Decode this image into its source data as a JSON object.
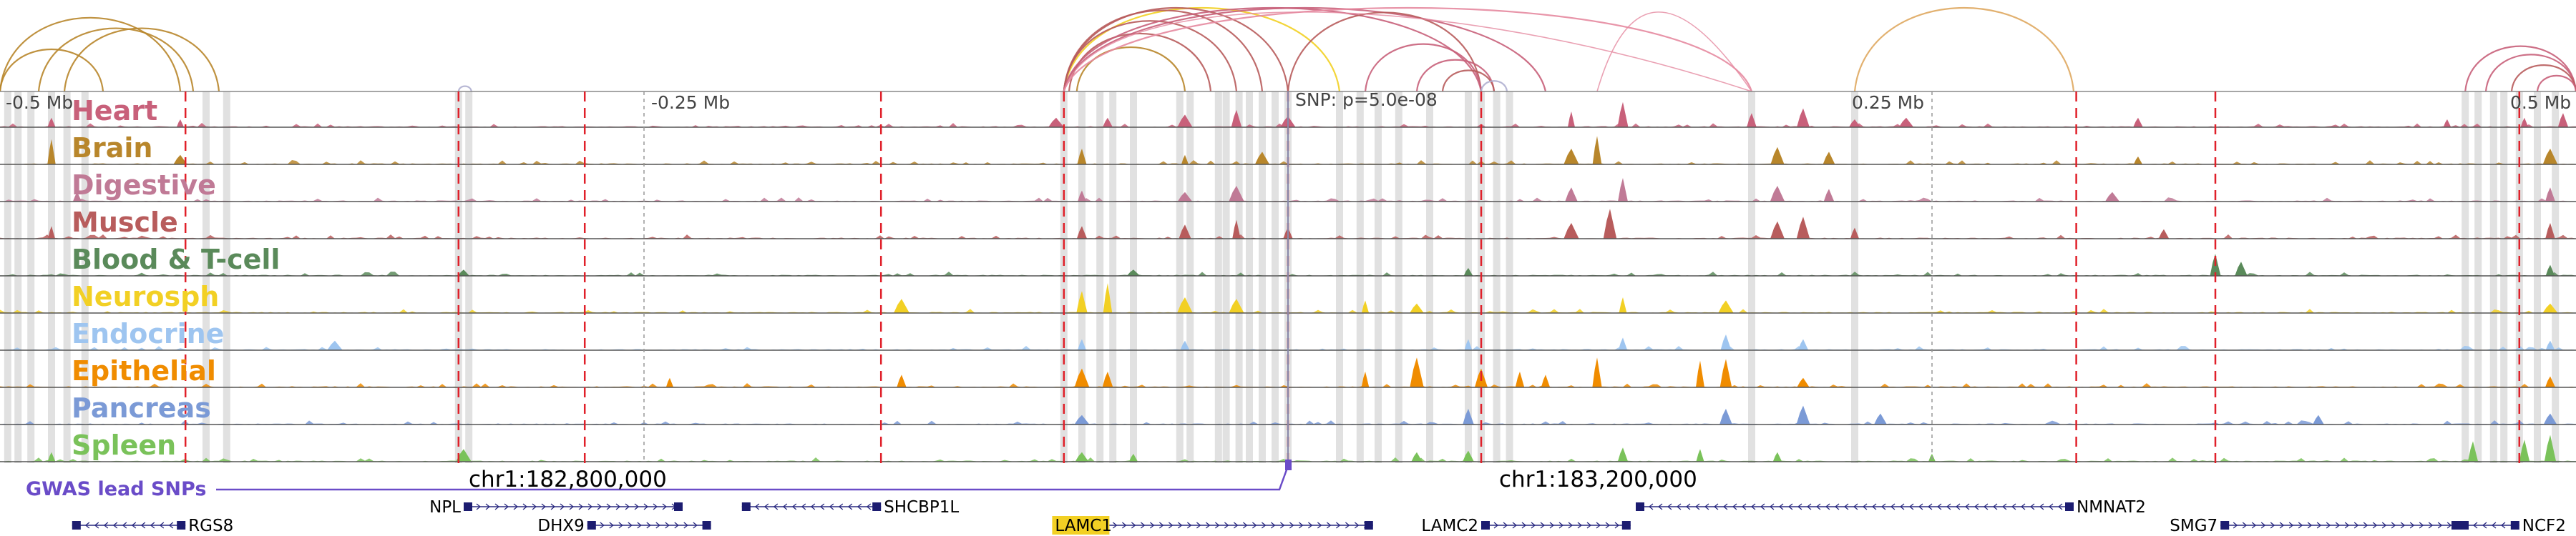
{
  "tracks": [
    {
      "label": "Heart",
      "color": "#c8607a",
      "peaks": [
        [
          0.02,
          0.3
        ],
        [
          0.07,
          0.25
        ],
        [
          0.41,
          0.3
        ],
        [
          0.43,
          0.3
        ],
        [
          0.46,
          0.4
        ],
        [
          0.48,
          0.55
        ],
        [
          0.5,
          0.35
        ],
        [
          0.61,
          0.5
        ],
        [
          0.63,
          0.8
        ],
        [
          0.68,
          0.45
        ],
        [
          0.7,
          0.6
        ],
        [
          0.72,
          0.25
        ],
        [
          0.74,
          0.3
        ],
        [
          0.83,
          0.3
        ],
        [
          0.95,
          0.25
        ],
        [
          0.98,
          0.3
        ],
        [
          0.995,
          0.45
        ]
      ]
    },
    {
      "label": "Brain",
      "color": "#b8862b",
      "peaks": [
        [
          0.02,
          0.8
        ],
        [
          0.07,
          0.3
        ],
        [
          0.42,
          0.5
        ],
        [
          0.46,
          0.3
        ],
        [
          0.49,
          0.4
        ],
        [
          0.61,
          0.5
        ],
        [
          0.62,
          0.9
        ],
        [
          0.69,
          0.55
        ],
        [
          0.71,
          0.4
        ],
        [
          0.83,
          0.25
        ],
        [
          0.99,
          0.5
        ]
      ]
    },
    {
      "label": "Digestive",
      "color": "#c07a96",
      "peaks": [
        [
          0.03,
          0.3
        ],
        [
          0.42,
          0.35
        ],
        [
          0.46,
          0.3
        ],
        [
          0.48,
          0.5
        ],
        [
          0.61,
          0.45
        ],
        [
          0.63,
          0.75
        ],
        [
          0.69,
          0.5
        ],
        [
          0.71,
          0.4
        ],
        [
          0.82,
          0.3
        ],
        [
          0.99,
          0.45
        ]
      ]
    },
    {
      "label": "Muscle",
      "color": "#b85c5c",
      "peaks": [
        [
          0.02,
          0.4
        ],
        [
          0.42,
          0.4
        ],
        [
          0.46,
          0.45
        ],
        [
          0.48,
          0.6
        ],
        [
          0.5,
          0.35
        ],
        [
          0.61,
          0.5
        ],
        [
          0.625,
          0.95
        ],
        [
          0.69,
          0.55
        ],
        [
          0.7,
          0.7
        ],
        [
          0.72,
          0.35
        ],
        [
          0.84,
          0.3
        ],
        [
          0.99,
          0.5
        ]
      ]
    },
    {
      "label": "Blood & T-cell",
      "color": "#5a8a5a",
      "peaks": [
        [
          0.18,
          0.2
        ],
        [
          0.44,
          0.2
        ],
        [
          0.57,
          0.25
        ],
        [
          0.86,
          0.7
        ],
        [
          0.87,
          0.45
        ],
        [
          0.99,
          0.35
        ]
      ]
    },
    {
      "label": "Neurosph",
      "color": "#f2d024",
      "peaks": [
        [
          0.35,
          0.45
        ],
        [
          0.42,
          0.7
        ],
        [
          0.43,
          0.95
        ],
        [
          0.46,
          0.5
        ],
        [
          0.48,
          0.45
        ],
        [
          0.53,
          0.4
        ],
        [
          0.55,
          0.3
        ],
        [
          0.63,
          0.5
        ],
        [
          0.67,
          0.4
        ],
        [
          0.99,
          0.3
        ]
      ]
    },
    {
      "label": "Endocrine",
      "color": "#9ec5f0",
      "peaks": [
        [
          0.13,
          0.3
        ],
        [
          0.42,
          0.35
        ],
        [
          0.46,
          0.3
        ],
        [
          0.57,
          0.35
        ],
        [
          0.63,
          0.4
        ],
        [
          0.67,
          0.5
        ],
        [
          0.7,
          0.35
        ],
        [
          0.99,
          0.3
        ]
      ]
    },
    {
      "label": "Epithelial",
      "color": "#f08c00",
      "peaks": [
        [
          0.26,
          0.3
        ],
        [
          0.35,
          0.4
        ],
        [
          0.42,
          0.6
        ],
        [
          0.43,
          0.5
        ],
        [
          0.53,
          0.5
        ],
        [
          0.55,
          0.95
        ],
        [
          0.575,
          0.6
        ],
        [
          0.59,
          0.5
        ],
        [
          0.6,
          0.4
        ],
        [
          0.62,
          0.95
        ],
        [
          0.66,
          0.85
        ],
        [
          0.67,
          0.9
        ],
        [
          0.7,
          0.3
        ],
        [
          0.99,
          0.35
        ]
      ]
    },
    {
      "label": "Pancreas",
      "color": "#7b9ad6",
      "peaks": [
        [
          0.42,
          0.3
        ],
        [
          0.57,
          0.5
        ],
        [
          0.67,
          0.5
        ],
        [
          0.7,
          0.6
        ],
        [
          0.73,
          0.35
        ],
        [
          0.9,
          0.3
        ],
        [
          0.99,
          0.35
        ]
      ]
    },
    {
      "label": "Spleen",
      "color": "#7ac25a",
      "peaks": [
        [
          0.02,
          0.3
        ],
        [
          0.18,
          0.4
        ],
        [
          0.42,
          0.3
        ],
        [
          0.44,
          0.25
        ],
        [
          0.55,
          0.3
        ],
        [
          0.57,
          0.35
        ],
        [
          0.63,
          0.45
        ],
        [
          0.66,
          0.4
        ],
        [
          0.69,
          0.3
        ],
        [
          0.75,
          0.25
        ],
        [
          0.96,
          0.65
        ],
        [
          0.98,
          0.7
        ],
        [
          0.99,
          0.85
        ]
      ]
    }
  ],
  "scale": {
    "left": "-0.5 Mb",
    "quarter_left": "-0.25 Mb",
    "snp": "SNP: p=5.0e-08",
    "quarter_right": "0.25 Mb",
    "right": "0.5 Mb"
  },
  "gwas": {
    "label": "GWAS lead SNPs",
    "color": "#6a4cc8"
  },
  "regions": {
    "left": "chr1:182,800,000",
    "right": "chr1:183,200,000"
  },
  "genes": [
    {
      "name": "NPL",
      "strand": "+",
      "row": 1,
      "start": 0.18,
      "end": 0.265,
      "label_side": "left"
    },
    {
      "name": "SHCBP1L",
      "strand": "-",
      "row": 1,
      "start": 0.288,
      "end": 0.342,
      "label_side": "right"
    },
    {
      "name": "NMNAT2",
      "strand": "-",
      "row": 1,
      "start": 0.635,
      "end": 0.805,
      "label_side": "right"
    },
    {
      "name": "RGS8",
      "strand": "-",
      "row": 2,
      "start": 0.028,
      "end": 0.072,
      "label_side": "right"
    },
    {
      "name": "DHX9",
      "strand": "+",
      "row": 2,
      "start": 0.228,
      "end": 0.276,
      "label_side": "left"
    },
    {
      "name": "LAMC1",
      "strand": "+",
      "row": 2,
      "start": 0.409,
      "end": 0.533,
      "label_side": "left",
      "highlight": "#f2d024"
    },
    {
      "name": "LAMC2",
      "strand": "+",
      "row": 2,
      "start": 0.575,
      "end": 0.633,
      "label_side": "left"
    },
    {
      "name": "SMG7",
      "strand": "+",
      "row": 2,
      "start": 0.862,
      "end": 0.955,
      "label_side": "left"
    },
    {
      "name": "NCF2",
      "strand": "-",
      "row": 2,
      "start": 0.955,
      "end": 0.978,
      "label_side": "right"
    }
  ],
  "interaction_arcs": [
    {
      "from": 0.0,
      "to": 0.04,
      "color": "#b8862b"
    },
    {
      "from": 0.0,
      "to": 0.07,
      "color": "#b8862b"
    },
    {
      "from": 0.015,
      "to": 0.075,
      "color": "#b8862b"
    },
    {
      "from": 0.025,
      "to": 0.085,
      "color": "#b8862b"
    },
    {
      "from": 0.178,
      "to": 0.183,
      "color": "#b0b0d0"
    },
    {
      "from": 0.413,
      "to": 0.52,
      "color": "#f2d024"
    },
    {
      "from": 0.413,
      "to": 0.5,
      "color": "#b85c5c"
    },
    {
      "from": 0.413,
      "to": 0.49,
      "color": "#b85c5c"
    },
    {
      "from": 0.413,
      "to": 0.48,
      "color": "#b85c5c"
    },
    {
      "from": 0.415,
      "to": 0.47,
      "color": "#b85c5c"
    },
    {
      "from": 0.418,
      "to": 0.46,
      "color": "#b8862b"
    },
    {
      "from": 0.413,
      "to": 0.575,
      "color": "#c8607a"
    },
    {
      "from": 0.413,
      "to": 0.6,
      "color": "#c8607a"
    },
    {
      "from": 0.413,
      "to": 0.68,
      "color": "#e58aa0"
    },
    {
      "from": 0.5,
      "to": 0.575,
      "color": "#b85c5c"
    },
    {
      "from": 0.53,
      "to": 0.575,
      "color": "#c8607a"
    },
    {
      "from": 0.55,
      "to": 0.58,
      "color": "#c8607a"
    },
    {
      "from": 0.56,
      "to": 0.58,
      "color": "#b85c5c"
    },
    {
      "from": 0.575,
      "to": 0.585,
      "color": "#b0b0d0"
    },
    {
      "from": 0.72,
      "to": 0.805,
      "color": "#dfa860"
    },
    {
      "from": 0.957,
      "to": 1.0,
      "color": "#c8607a"
    },
    {
      "from": 0.965,
      "to": 1.0,
      "color": "#c8607a"
    },
    {
      "from": 0.975,
      "to": 1.0,
      "color": "#b85c5c"
    },
    {
      "from": 0.985,
      "to": 1.0,
      "color": "#c8607a"
    }
  ],
  "long_arcs": [
    {
      "from": 0.413,
      "to": 0.68,
      "color": "#e58aa0"
    },
    {
      "from": 0.62,
      "to": 0.68,
      "color": "#e58aa0"
    }
  ],
  "highlight_positions": [
    0.003,
    0.007,
    0.012,
    0.02,
    0.026,
    0.033,
    0.08,
    0.088,
    0.178,
    0.182,
    0.413,
    0.42,
    0.427,
    0.432,
    0.44,
    0.458,
    0.462,
    0.473,
    0.476,
    0.481,
    0.485,
    0.49,
    0.495,
    0.5,
    0.52,
    0.528,
    0.535,
    0.543,
    0.555,
    0.57,
    0.575,
    0.581,
    0.586,
    0.68,
    0.72,
    0.957,
    0.962,
    0.968,
    0.972,
    0.978,
    0.985,
    0.992
  ],
  "red_dashed_positions": [
    0.072,
    0.178,
    0.227,
    0.342,
    0.413,
    0.5,
    0.575,
    0.806,
    0.86,
    0.978
  ],
  "grey_dashed_positions": [
    0.25,
    0.75
  ],
  "snp_position": 0.5
}
